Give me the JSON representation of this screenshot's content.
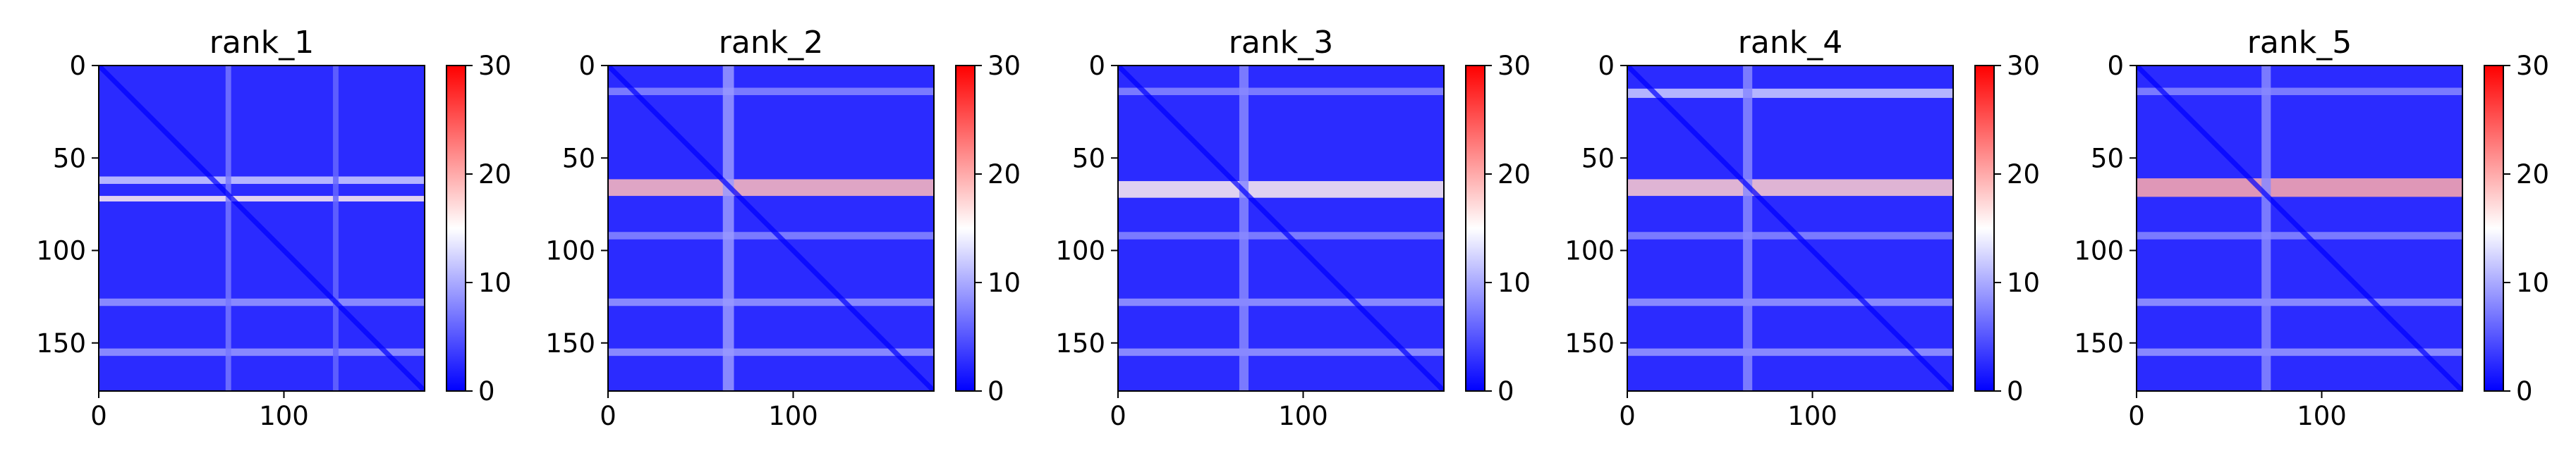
{
  "figure": {
    "title": ""
  },
  "chart_data": [
    {
      "type": "heatmap",
      "title": "rank_1",
      "xlabel": "",
      "ylabel": "",
      "x_ticks": [
        "0",
        "100"
      ],
      "y_ticks": [
        "0",
        "50",
        "100",
        "150"
      ],
      "x_range": [
        0,
        176
      ],
      "y_range": [
        0,
        176
      ],
      "colorbar": {
        "ticks": [
          "0",
          "10",
          "20",
          "30"
        ],
        "range": [
          0,
          30
        ],
        "colormap": "bwr"
      },
      "colors": {
        "low": "#0000ff",
        "mid": "#ffffff",
        "high": "#ff0000"
      },
      "features": {
        "diagonal": "dark blue",
        "light_bands": [
          {
            "axis": "row",
            "center": 62,
            "width": 4,
            "value": 12
          },
          {
            "axis": "row",
            "center": 72,
            "width": 3,
            "value": 16
          },
          {
            "axis": "row",
            "center": 128,
            "width": 4,
            "value": 9
          },
          {
            "axis": "row",
            "center": 155,
            "width": 4,
            "value": 9
          },
          {
            "axis": "col",
            "center": 70,
            "width": 3,
            "value": 7
          },
          {
            "axis": "col",
            "center": 128,
            "width": 3,
            "value": 6
          }
        ]
      }
    },
    {
      "type": "heatmap",
      "title": "rank_2",
      "xlabel": "",
      "ylabel": "",
      "x_ticks": [
        "0",
        "100"
      ],
      "y_ticks": [
        "0",
        "50",
        "100",
        "150"
      ],
      "x_range": [
        0,
        176
      ],
      "y_range": [
        0,
        176
      ],
      "colorbar": {
        "ticks": [
          "0",
          "10",
          "20",
          "30"
        ],
        "range": [
          0,
          30
        ],
        "colormap": "bwr"
      },
      "colors": {
        "low": "#0000ff",
        "mid": "#ffffff",
        "high": "#ff0000"
      },
      "features": {
        "diagonal": "dark blue",
        "light_bands": [
          {
            "axis": "row",
            "center": 66,
            "width": 9,
            "value": 19
          },
          {
            "axis": "row",
            "center": 14,
            "width": 4,
            "value": 8
          },
          {
            "axis": "row",
            "center": 92,
            "width": 4,
            "value": 8
          },
          {
            "axis": "row",
            "center": 128,
            "width": 4,
            "value": 9
          },
          {
            "axis": "row",
            "center": 155,
            "width": 4,
            "value": 9
          },
          {
            "axis": "col",
            "center": 65,
            "width": 6,
            "value": 9
          }
        ]
      }
    },
    {
      "type": "heatmap",
      "title": "rank_3",
      "xlabel": "",
      "ylabel": "",
      "x_ticks": [
        "0",
        "100"
      ],
      "y_ticks": [
        "0",
        "50",
        "100",
        "150"
      ],
      "x_range": [
        0,
        176
      ],
      "y_range": [
        0,
        176
      ],
      "colorbar": {
        "ticks": [
          "0",
          "10",
          "20",
          "30"
        ],
        "range": [
          0,
          30
        ],
        "colormap": "bwr"
      },
      "colors": {
        "low": "#0000ff",
        "mid": "#ffffff",
        "high": "#ff0000"
      },
      "features": {
        "diagonal": "dark blue",
        "light_bands": [
          {
            "axis": "row",
            "center": 67,
            "width": 9,
            "value": 16
          },
          {
            "axis": "row",
            "center": 14,
            "width": 4,
            "value": 8
          },
          {
            "axis": "row",
            "center": 92,
            "width": 4,
            "value": 8
          },
          {
            "axis": "row",
            "center": 128,
            "width": 4,
            "value": 9
          },
          {
            "axis": "row",
            "center": 155,
            "width": 4,
            "value": 9
          },
          {
            "axis": "col",
            "center": 68,
            "width": 5,
            "value": 8
          }
        ]
      }
    },
    {
      "type": "heatmap",
      "title": "rank_4",
      "xlabel": "",
      "ylabel": "",
      "x_ticks": [
        "0",
        "100"
      ],
      "y_ticks": [
        "0",
        "50",
        "100",
        "150"
      ],
      "x_range": [
        0,
        176
      ],
      "y_range": [
        0,
        176
      ],
      "colorbar": {
        "ticks": [
          "0",
          "10",
          "20",
          "30"
        ],
        "range": [
          0,
          30
        ],
        "colormap": "bwr"
      },
      "colors": {
        "low": "#0000ff",
        "mid": "#ffffff",
        "high": "#ff0000"
      },
      "features": {
        "diagonal": "dark blue",
        "light_bands": [
          {
            "axis": "row",
            "center": 66,
            "width": 9,
            "value": 18
          },
          {
            "axis": "row",
            "center": 15,
            "width": 5,
            "value": 12
          },
          {
            "axis": "row",
            "center": 92,
            "width": 4,
            "value": 8
          },
          {
            "axis": "row",
            "center": 128,
            "width": 4,
            "value": 9
          },
          {
            "axis": "row",
            "center": 155,
            "width": 4,
            "value": 9
          },
          {
            "axis": "col",
            "center": 65,
            "width": 5,
            "value": 8
          }
        ]
      }
    },
    {
      "type": "heatmap",
      "title": "rank_5",
      "xlabel": "",
      "ylabel": "",
      "x_ticks": [
        "0",
        "100"
      ],
      "y_ticks": [
        "0",
        "50",
        "100",
        "150"
      ],
      "x_range": [
        0,
        176
      ],
      "y_range": [
        0,
        176
      ],
      "colorbar": {
        "ticks": [
          "0",
          "10",
          "20",
          "30"
        ],
        "range": [
          0,
          30
        ],
        "colormap": "bwr"
      },
      "colors": {
        "low": "#0000ff",
        "mid": "#ffffff",
        "high": "#ff0000"
      },
      "features": {
        "diagonal": "dark blue",
        "light_bands": [
          {
            "axis": "row",
            "center": 66,
            "width": 10,
            "value": 20
          },
          {
            "axis": "row",
            "center": 14,
            "width": 4,
            "value": 8
          },
          {
            "axis": "row",
            "center": 92,
            "width": 4,
            "value": 8
          },
          {
            "axis": "row",
            "center": 128,
            "width": 4,
            "value": 9
          },
          {
            "axis": "row",
            "center": 155,
            "width": 4,
            "value": 9
          },
          {
            "axis": "col",
            "center": 70,
            "width": 5,
            "value": 8
          }
        ]
      }
    }
  ]
}
